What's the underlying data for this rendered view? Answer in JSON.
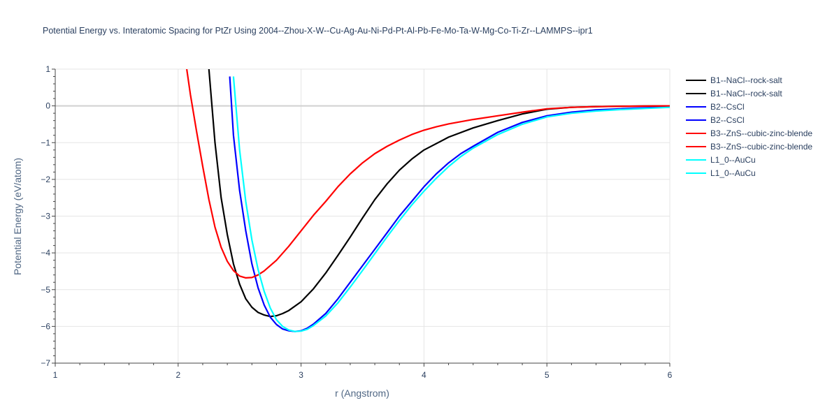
{
  "chart_data": {
    "type": "line",
    "title": "Potential Energy vs. Interatomic Spacing for PtZr Using 2004--Zhou-X-W--Cu-Ag-Au-Ni-Pd-Pt-Al-Pb-Fe-Mo-Ta-W-Mg-Co-Ti-Zr--LAMMPS--ipr1",
    "xlabel": "r (Angstrom)",
    "ylabel": "Potential Energy (eV/atom)",
    "xlim": [
      1,
      6
    ],
    "ylim": [
      -7,
      1
    ],
    "xticks": [
      1,
      2,
      3,
      4,
      5,
      6
    ],
    "yticks": [
      1,
      0,
      -1,
      -2,
      -3,
      -4,
      -5,
      -6,
      -7
    ],
    "ytick_labels": [
      "1",
      "0",
      "−1",
      "−2",
      "−3",
      "−4",
      "−5",
      "−6",
      "−7"
    ],
    "grid": true,
    "legend_position": "right",
    "series": [
      {
        "name": "B1--NaCl--rock-salt",
        "color": "#000000",
        "x": [
          2.25,
          2.3,
          2.35,
          2.4,
          2.45,
          2.5,
          2.55,
          2.6,
          2.65,
          2.7,
          2.75,
          2.8,
          2.85,
          2.9,
          3.0,
          3.1,
          3.2,
          3.3,
          3.4,
          3.5,
          3.6,
          3.7,
          3.8,
          3.9,
          4.0,
          4.2,
          4.4,
          4.6,
          4.8,
          5.0,
          5.2,
          5.4,
          5.6,
          5.8,
          6.0
        ],
        "y": [
          1.0,
          -1.0,
          -2.5,
          -3.5,
          -4.3,
          -4.85,
          -5.25,
          -5.48,
          -5.62,
          -5.69,
          -5.73,
          -5.71,
          -5.65,
          -5.57,
          -5.33,
          -4.98,
          -4.55,
          -4.07,
          -3.57,
          -3.05,
          -2.55,
          -2.12,
          -1.75,
          -1.45,
          -1.2,
          -0.85,
          -0.6,
          -0.4,
          -0.22,
          -0.09,
          -0.04,
          -0.02,
          -0.01,
          -0.005,
          0.0
        ]
      },
      {
        "name": "B1--NaCl--rock-salt",
        "color": "#000000",
        "x": [],
        "y": []
      },
      {
        "name": "B2--CsCl",
        "color": "#0000ff",
        "x": [
          2.42,
          2.45,
          2.5,
          2.55,
          2.6,
          2.65,
          2.7,
          2.75,
          2.8,
          2.85,
          2.9,
          2.95,
          3.0,
          3.05,
          3.1,
          3.2,
          3.3,
          3.4,
          3.5,
          3.6,
          3.7,
          3.8,
          3.9,
          4.0,
          4.1,
          4.2,
          4.3,
          4.4,
          4.6,
          4.8,
          5.0,
          5.2,
          5.4,
          5.6,
          5.8,
          6.0
        ],
        "y": [
          0.8,
          -0.8,
          -2.3,
          -3.4,
          -4.3,
          -4.95,
          -5.42,
          -5.75,
          -5.95,
          -6.07,
          -6.12,
          -6.14,
          -6.12,
          -6.05,
          -5.94,
          -5.65,
          -5.25,
          -4.8,
          -4.35,
          -3.9,
          -3.45,
          -3.0,
          -2.6,
          -2.2,
          -1.85,
          -1.55,
          -1.3,
          -1.1,
          -0.72,
          -0.45,
          -0.27,
          -0.17,
          -0.11,
          -0.08,
          -0.05,
          -0.03
        ]
      },
      {
        "name": "B2--CsCl",
        "color": "#0000ff",
        "x": [],
        "y": []
      },
      {
        "name": "B3--ZnS--cubic-zinc-blende",
        "color": "#ff0000",
        "x": [
          2.07,
          2.1,
          2.15,
          2.2,
          2.25,
          2.3,
          2.35,
          2.4,
          2.45,
          2.5,
          2.55,
          2.6,
          2.65,
          2.7,
          2.8,
          2.9,
          3.0,
          3.1,
          3.2,
          3.3,
          3.4,
          3.5,
          3.6,
          3.7,
          3.8,
          3.9,
          4.0,
          4.1,
          4.2,
          4.4,
          4.6,
          4.8,
          5.0,
          5.2,
          5.4,
          5.6,
          5.8,
          6.0
        ],
        "y": [
          1.0,
          0.3,
          -0.7,
          -1.65,
          -2.55,
          -3.3,
          -3.85,
          -4.23,
          -4.48,
          -4.63,
          -4.68,
          -4.67,
          -4.6,
          -4.49,
          -4.2,
          -3.82,
          -3.4,
          -2.98,
          -2.6,
          -2.2,
          -1.85,
          -1.55,
          -1.3,
          -1.1,
          -0.93,
          -0.78,
          -0.66,
          -0.57,
          -0.49,
          -0.37,
          -0.27,
          -0.17,
          -0.08,
          -0.04,
          -0.02,
          -0.01,
          -0.005,
          0.0
        ]
      },
      {
        "name": "B3--ZnS--cubic-zinc-blende",
        "color": "#ff0000",
        "x": [],
        "y": []
      },
      {
        "name": "L1_0--AuCu",
        "color": "#00ffff",
        "x": [
          2.45,
          2.5,
          2.55,
          2.6,
          2.65,
          2.7,
          2.75,
          2.8,
          2.85,
          2.9,
          2.95,
          3.0,
          3.05,
          3.1,
          3.2,
          3.3,
          3.4,
          3.5,
          3.6,
          3.7,
          3.8,
          3.9,
          4.0,
          4.1,
          4.2,
          4.3,
          4.4,
          4.6,
          4.8,
          5.0,
          5.2,
          5.4,
          5.6,
          5.8,
          6.0
        ],
        "y": [
          0.8,
          -1.2,
          -2.6,
          -3.65,
          -4.45,
          -5.05,
          -5.5,
          -5.82,
          -6.0,
          -6.1,
          -6.14,
          -6.13,
          -6.08,
          -5.98,
          -5.72,
          -5.36,
          -4.93,
          -4.48,
          -4.02,
          -3.56,
          -3.12,
          -2.7,
          -2.32,
          -1.97,
          -1.65,
          -1.38,
          -1.15,
          -0.78,
          -0.5,
          -0.3,
          -0.2,
          -0.14,
          -0.1,
          -0.07,
          -0.04
        ]
      },
      {
        "name": "L1_0--AuCu",
        "color": "#00ffff",
        "x": [],
        "y": []
      }
    ]
  }
}
